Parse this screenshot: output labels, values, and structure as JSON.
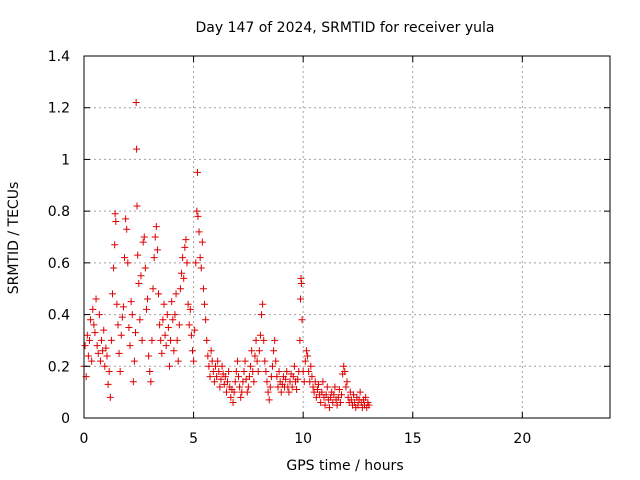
{
  "chart_data": {
    "type": "scatter",
    "title": "Day 147 of 2024, SRMTID for receiver yula",
    "xlabel": "GPS time / hours",
    "ylabel": "SRMTID / TECUs",
    "xlim": [
      0,
      24
    ],
    "ylim": [
      0,
      1.4
    ],
    "xticks": [
      0,
      5,
      10,
      15,
      20
    ],
    "yticks": [
      0,
      0.2,
      0.4,
      0.6,
      0.8,
      1,
      1.2,
      1.4
    ],
    "xtick_labels": [
      "0",
      "5",
      "10",
      "15",
      "20"
    ],
    "ytick_labels": [
      "0",
      "0.2",
      "0.4",
      "0.6",
      "0.8",
      "1",
      "1.2",
      "1.4"
    ],
    "grid": true,
    "legend": "none",
    "marker": "+",
    "color": "#dd0000",
    "series": [
      {
        "name": "SRMTID",
        "points": [
          [
            0.0,
            0.2
          ],
          [
            0.05,
            0.28
          ],
          [
            0.1,
            0.16
          ],
          [
            0.15,
            0.32
          ],
          [
            0.2,
            0.24
          ],
          [
            0.25,
            0.3
          ],
          [
            0.3,
            0.38
          ],
          [
            0.35,
            0.22
          ],
          [
            0.4,
            0.42
          ],
          [
            0.45,
            0.36
          ],
          [
            0.5,
            0.33
          ],
          [
            0.55,
            0.46
          ],
          [
            0.6,
            0.28
          ],
          [
            0.65,
            0.25
          ],
          [
            0.7,
            0.4
          ],
          [
            0.75,
            0.22
          ],
          [
            0.8,
            0.3
          ],
          [
            0.85,
            0.26
          ],
          [
            0.9,
            0.34
          ],
          [
            0.95,
            0.2
          ],
          [
            1.0,
            0.27
          ],
          [
            1.05,
            0.24
          ],
          [
            1.1,
            0.13
          ],
          [
            1.15,
            0.18
          ],
          [
            1.2,
            0.08
          ],
          [
            1.25,
            0.3
          ],
          [
            1.3,
            0.48
          ],
          [
            1.35,
            0.58
          ],
          [
            1.4,
            0.67
          ],
          [
            1.42,
            0.79
          ],
          [
            1.45,
            0.76
          ],
          [
            1.5,
            0.44
          ],
          [
            1.55,
            0.36
          ],
          [
            1.6,
            0.25
          ],
          [
            1.65,
            0.18
          ],
          [
            1.7,
            0.32
          ],
          [
            1.75,
            0.39
          ],
          [
            1.8,
            0.43
          ],
          [
            1.85,
            0.62
          ],
          [
            1.9,
            0.77
          ],
          [
            1.95,
            0.73
          ],
          [
            2.0,
            0.6
          ],
          [
            2.05,
            0.35
          ],
          [
            2.1,
            0.28
          ],
          [
            2.15,
            0.45
          ],
          [
            2.2,
            0.4
          ],
          [
            2.25,
            0.14
          ],
          [
            2.3,
            0.22
          ],
          [
            2.35,
            0.33
          ],
          [
            2.38,
            1.22
          ],
          [
            2.4,
            1.04
          ],
          [
            2.42,
            0.82
          ],
          [
            2.45,
            0.63
          ],
          [
            2.5,
            0.52
          ],
          [
            2.55,
            0.38
          ],
          [
            2.6,
            0.55
          ],
          [
            2.65,
            0.3
          ],
          [
            2.7,
            0.68
          ],
          [
            2.75,
            0.7
          ],
          [
            2.8,
            0.58
          ],
          [
            2.85,
            0.42
          ],
          [
            2.9,
            0.46
          ],
          [
            2.95,
            0.24
          ],
          [
            3.0,
            0.18
          ],
          [
            3.05,
            0.14
          ],
          [
            3.1,
            0.3
          ],
          [
            3.15,
            0.5
          ],
          [
            3.2,
            0.62
          ],
          [
            3.25,
            0.7
          ],
          [
            3.3,
            0.74
          ],
          [
            3.35,
            0.65
          ],
          [
            3.4,
            0.48
          ],
          [
            3.45,
            0.36
          ],
          [
            3.5,
            0.3
          ],
          [
            3.55,
            0.25
          ],
          [
            3.6,
            0.38
          ],
          [
            3.65,
            0.44
          ],
          [
            3.7,
            0.32
          ],
          [
            3.75,
            0.28
          ],
          [
            3.8,
            0.4
          ],
          [
            3.85,
            0.35
          ],
          [
            3.9,
            0.2
          ],
          [
            3.95,
            0.3
          ],
          [
            4.0,
            0.45
          ],
          [
            4.05,
            0.38
          ],
          [
            4.1,
            0.26
          ],
          [
            4.15,
            0.4
          ],
          [
            4.2,
            0.48
          ],
          [
            4.25,
            0.3
          ],
          [
            4.3,
            0.22
          ],
          [
            4.35,
            0.36
          ],
          [
            4.4,
            0.5
          ],
          [
            4.45,
            0.56
          ],
          [
            4.5,
            0.62
          ],
          [
            4.55,
            0.54
          ],
          [
            4.6,
            0.66
          ],
          [
            4.65,
            0.69
          ],
          [
            4.7,
            0.6
          ],
          [
            4.75,
            0.44
          ],
          [
            4.8,
            0.36
          ],
          [
            4.85,
            0.42
          ],
          [
            4.9,
            0.32
          ],
          [
            4.95,
            0.26
          ],
          [
            5.0,
            0.22
          ],
          [
            5.05,
            0.34
          ],
          [
            5.1,
            0.6
          ],
          [
            5.15,
            0.8
          ],
          [
            5.18,
            0.95
          ],
          [
            5.2,
            0.78
          ],
          [
            5.25,
            0.72
          ],
          [
            5.3,
            0.62
          ],
          [
            5.35,
            0.58
          ],
          [
            5.4,
            0.68
          ],
          [
            5.45,
            0.5
          ],
          [
            5.5,
            0.44
          ],
          [
            5.55,
            0.38
          ],
          [
            5.6,
            0.3
          ],
          [
            5.65,
            0.24
          ],
          [
            5.7,
            0.2
          ],
          [
            5.75,
            0.16
          ],
          [
            5.8,
            0.26
          ],
          [
            5.85,
            0.22
          ],
          [
            5.9,
            0.18
          ],
          [
            5.95,
            0.14
          ],
          [
            6.0,
            0.2
          ],
          [
            6.05,
            0.16
          ],
          [
            6.1,
            0.22
          ],
          [
            6.15,
            0.18
          ],
          [
            6.2,
            0.12
          ],
          [
            6.25,
            0.15
          ],
          [
            6.3,
            0.2
          ],
          [
            6.35,
            0.17
          ],
          [
            6.4,
            0.13
          ],
          [
            6.45,
            0.16
          ],
          [
            6.5,
            0.1
          ],
          [
            6.55,
            0.14
          ],
          [
            6.6,
            0.18
          ],
          [
            6.65,
            0.12
          ],
          [
            6.7,
            0.08
          ],
          [
            6.75,
            0.11
          ],
          [
            6.8,
            0.06
          ],
          [
            6.85,
            0.1
          ],
          [
            6.9,
            0.14
          ],
          [
            6.95,
            0.18
          ],
          [
            7.0,
            0.22
          ],
          [
            7.05,
            0.16
          ],
          [
            7.1,
            0.12
          ],
          [
            7.15,
            0.08
          ],
          [
            7.2,
            0.1
          ],
          [
            7.25,
            0.14
          ],
          [
            7.3,
            0.18
          ],
          [
            7.35,
            0.22
          ],
          [
            7.4,
            0.15
          ],
          [
            7.45,
            0.1
          ],
          [
            7.5,
            0.12
          ],
          [
            7.55,
            0.16
          ],
          [
            7.6,
            0.2
          ],
          [
            7.65,
            0.26
          ],
          [
            7.7,
            0.18
          ],
          [
            7.75,
            0.14
          ],
          [
            7.8,
            0.24
          ],
          [
            7.85,
            0.3
          ],
          [
            7.9,
            0.22
          ],
          [
            7.95,
            0.18
          ],
          [
            8.0,
            0.26
          ],
          [
            8.05,
            0.32
          ],
          [
            8.1,
            0.4
          ],
          [
            8.15,
            0.44
          ],
          [
            8.2,
            0.3
          ],
          [
            8.25,
            0.22
          ],
          [
            8.3,
            0.18
          ],
          [
            8.35,
            0.14
          ],
          [
            8.4,
            0.1
          ],
          [
            8.45,
            0.07
          ],
          [
            8.5,
            0.12
          ],
          [
            8.55,
            0.16
          ],
          [
            8.6,
            0.2
          ],
          [
            8.65,
            0.26
          ],
          [
            8.7,
            0.3
          ],
          [
            8.75,
            0.22
          ],
          [
            8.8,
            0.16
          ],
          [
            8.85,
            0.12
          ],
          [
            8.9,
            0.18
          ],
          [
            8.95,
            0.14
          ],
          [
            9.0,
            0.1
          ],
          [
            9.05,
            0.13
          ],
          [
            9.1,
            0.16
          ],
          [
            9.15,
            0.12
          ],
          [
            9.2,
            0.15
          ],
          [
            9.25,
            0.18
          ],
          [
            9.3,
            0.12
          ],
          [
            9.35,
            0.1
          ],
          [
            9.4,
            0.14
          ],
          [
            9.45,
            0.17
          ],
          [
            9.5,
            0.12
          ],
          [
            9.55,
            0.16
          ],
          [
            9.6,
            0.2
          ],
          [
            9.65,
            0.14
          ],
          [
            9.7,
            0.11
          ],
          [
            9.75,
            0.15
          ],
          [
            9.8,
            0.18
          ],
          [
            9.85,
            0.3
          ],
          [
            9.88,
            0.46
          ],
          [
            9.9,
            0.54
          ],
          [
            9.92,
            0.52
          ],
          [
            9.95,
            0.38
          ],
          [
            10.0,
            0.18
          ],
          [
            10.05,
            0.14
          ],
          [
            10.1,
            0.22
          ],
          [
            10.15,
            0.26
          ],
          [
            10.2,
            0.24
          ],
          [
            10.25,
            0.18
          ],
          [
            10.3,
            0.14
          ],
          [
            10.35,
            0.2
          ],
          [
            10.4,
            0.16
          ],
          [
            10.45,
            0.12
          ],
          [
            10.5,
            0.1
          ],
          [
            10.55,
            0.14
          ],
          [
            10.6,
            0.08
          ],
          [
            10.65,
            0.11
          ],
          [
            10.7,
            0.13
          ],
          [
            10.75,
            0.09
          ],
          [
            10.8,
            0.06
          ],
          [
            10.85,
            0.1
          ],
          [
            10.9,
            0.14
          ],
          [
            10.95,
            0.08
          ],
          [
            11.0,
            0.05
          ],
          [
            11.05,
            0.09
          ],
          [
            11.1,
            0.12
          ],
          [
            11.15,
            0.07
          ],
          [
            11.2,
            0.04
          ],
          [
            11.25,
            0.08
          ],
          [
            11.3,
            0.1
          ],
          [
            11.35,
            0.06
          ],
          [
            11.4,
            0.09
          ],
          [
            11.45,
            0.12
          ],
          [
            11.5,
            0.07
          ],
          [
            11.55,
            0.05
          ],
          [
            11.6,
            0.08
          ],
          [
            11.65,
            0.11
          ],
          [
            11.7,
            0.06
          ],
          [
            11.75,
            0.09
          ],
          [
            11.8,
            0.17
          ],
          [
            11.85,
            0.2
          ],
          [
            11.9,
            0.18
          ],
          [
            11.95,
            0.12
          ],
          [
            12.0,
            0.14
          ],
          [
            12.05,
            0.08
          ],
          [
            12.1,
            0.06
          ],
          [
            12.15,
            0.1
          ],
          [
            12.2,
            0.07
          ],
          [
            12.25,
            0.05
          ],
          [
            12.3,
            0.09
          ],
          [
            12.35,
            0.06
          ],
          [
            12.4,
            0.04
          ],
          [
            12.45,
            0.08
          ],
          [
            12.5,
            0.05
          ],
          [
            12.55,
            0.07
          ],
          [
            12.6,
            0.1
          ],
          [
            12.65,
            0.06
          ],
          [
            12.7,
            0.04
          ],
          [
            12.75,
            0.07
          ],
          [
            12.8,
            0.05
          ],
          [
            12.85,
            0.08
          ],
          [
            12.9,
            0.04
          ],
          [
            12.95,
            0.06
          ],
          [
            13.0,
            0.05
          ]
        ]
      }
    ]
  }
}
